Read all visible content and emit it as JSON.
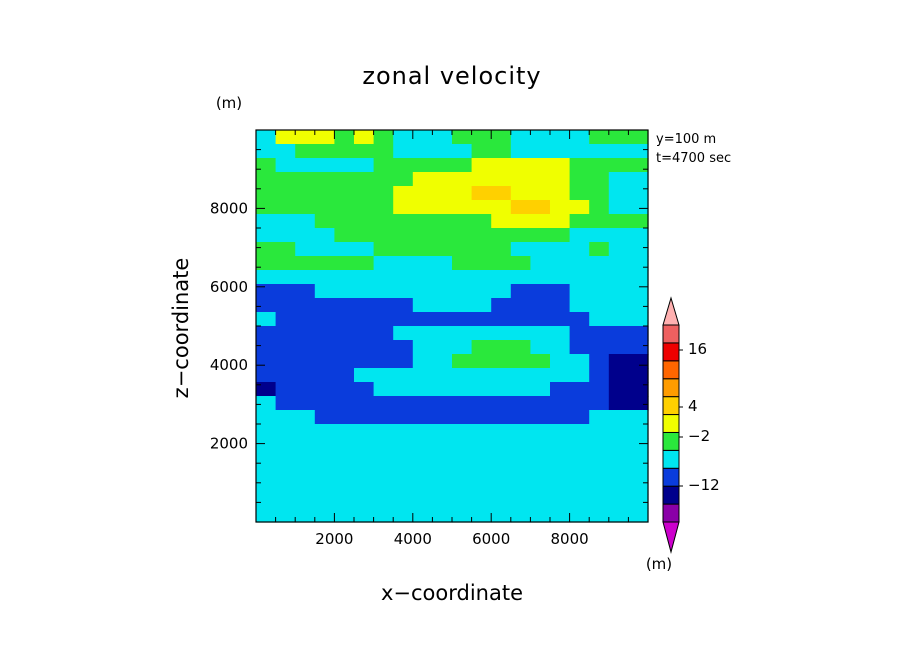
{
  "chart_data": {
    "type": "heatmap",
    "title": "zonal velocity",
    "xlabel": "x−coordinate",
    "ylabel": "z−coordinate",
    "x_unit": "(m)",
    "y_unit": "(m)",
    "xlim": [
      0,
      10000
    ],
    "ylim": [
      0,
      10000
    ],
    "xticks": [
      2000,
      4000,
      6000,
      8000
    ],
    "yticks": [
      2000,
      4000,
      6000,
      8000
    ],
    "annotations": [
      "y=100 m",
      "t=4700 sec"
    ],
    "colorbar": {
      "colors": [
        "#cc00cc",
        "#8a00a8",
        "#00008c",
        "#0a3cdc",
        "#00e6f0",
        "#2ae83c",
        "#f0ff00",
        "#ffd000",
        "#ff9c00",
        "#ff6600",
        "#ee0000",
        "#ee6060",
        "#ffb0b0"
      ],
      "tick_labels": [
        "16",
        "4",
        "−2",
        "−12"
      ]
    },
    "values": [
      [
        4,
        6,
        6,
        6,
        5,
        6,
        5,
        4,
        4,
        4,
        5,
        5,
        5,
        4,
        4,
        4,
        4,
        5,
        5,
        5
      ],
      [
        4,
        4,
        5,
        5,
        5,
        5,
        5,
        4,
        4,
        4,
        4,
        5,
        5,
        4,
        4,
        4,
        4,
        4,
        4,
        4
      ],
      [
        5,
        4,
        4,
        4,
        4,
        4,
        5,
        5,
        5,
        5,
        5,
        6,
        6,
        6,
        6,
        6,
        5,
        5,
        5,
        5
      ],
      [
        5,
        5,
        5,
        5,
        5,
        5,
        5,
        5,
        6,
        6,
        6,
        6,
        6,
        6,
        6,
        6,
        5,
        5,
        4,
        4
      ],
      [
        5,
        5,
        5,
        5,
        5,
        5,
        5,
        6,
        6,
        6,
        6,
        7,
        7,
        6,
        6,
        6,
        5,
        5,
        4,
        4
      ],
      [
        5,
        5,
        5,
        5,
        5,
        5,
        5,
        6,
        6,
        6,
        6,
        6,
        6,
        7,
        7,
        6,
        6,
        5,
        4,
        4
      ],
      [
        4,
        4,
        4,
        5,
        5,
        5,
        5,
        5,
        5,
        5,
        5,
        5,
        6,
        6,
        6,
        6,
        5,
        5,
        5,
        5
      ],
      [
        4,
        4,
        4,
        4,
        5,
        5,
        5,
        5,
        5,
        5,
        5,
        5,
        5,
        5,
        5,
        5,
        4,
        4,
        4,
        4
      ],
      [
        5,
        5,
        4,
        4,
        4,
        4,
        5,
        5,
        5,
        5,
        5,
        5,
        5,
        4,
        4,
        4,
        4,
        5,
        4,
        4
      ],
      [
        5,
        5,
        5,
        5,
        5,
        5,
        4,
        4,
        4,
        4,
        5,
        5,
        5,
        5,
        4,
        4,
        4,
        4,
        4,
        4
      ],
      [
        4,
        4,
        4,
        4,
        4,
        4,
        4,
        4,
        4,
        4,
        4,
        4,
        4,
        4,
        4,
        4,
        4,
        4,
        4,
        4
      ],
      [
        3,
        3,
        3,
        4,
        4,
        4,
        4,
        4,
        4,
        4,
        4,
        4,
        4,
        3,
        3,
        3,
        4,
        4,
        4,
        4
      ],
      [
        3,
        3,
        3,
        3,
        3,
        3,
        3,
        3,
        4,
        4,
        4,
        4,
        3,
        3,
        3,
        3,
        4,
        4,
        4,
        4
      ],
      [
        4,
        3,
        3,
        3,
        3,
        3,
        3,
        3,
        3,
        3,
        3,
        3,
        3,
        3,
        3,
        3,
        3,
        4,
        4,
        4
      ],
      [
        3,
        3,
        3,
        3,
        3,
        3,
        3,
        4,
        4,
        4,
        4,
        4,
        4,
        4,
        4,
        4,
        3,
        3,
        3,
        3
      ],
      [
        3,
        3,
        3,
        3,
        3,
        3,
        3,
        3,
        4,
        4,
        4,
        5,
        5,
        5,
        4,
        4,
        3,
        3,
        3,
        3
      ],
      [
        3,
        3,
        3,
        3,
        3,
        3,
        3,
        3,
        4,
        4,
        5,
        5,
        5,
        5,
        5,
        4,
        4,
        3,
        2,
        2
      ],
      [
        3,
        3,
        3,
        3,
        3,
        4,
        4,
        4,
        4,
        4,
        4,
        4,
        4,
        4,
        4,
        4,
        4,
        3,
        2,
        2
      ],
      [
        2,
        3,
        3,
        3,
        3,
        3,
        4,
        4,
        4,
        4,
        4,
        4,
        4,
        4,
        4,
        3,
        3,
        3,
        2,
        2
      ],
      [
        4,
        3,
        3,
        3,
        3,
        3,
        3,
        3,
        3,
        3,
        3,
        3,
        3,
        3,
        3,
        3,
        3,
        3,
        2,
        2
      ],
      [
        4,
        4,
        4,
        3,
        3,
        3,
        3,
        3,
        3,
        3,
        3,
        3,
        3,
        3,
        3,
        3,
        3,
        4,
        4,
        4
      ],
      [
        4,
        4,
        4,
        4,
        4,
        4,
        4,
        4,
        4,
        4,
        4,
        4,
        4,
        4,
        4,
        4,
        4,
        4,
        4,
        4
      ],
      [
        4,
        4,
        4,
        4,
        4,
        4,
        4,
        4,
        4,
        4,
        4,
        4,
        4,
        4,
        4,
        4,
        4,
        4,
        4,
        4
      ],
      [
        4,
        4,
        4,
        4,
        4,
        4,
        4,
        4,
        4,
        4,
        4,
        4,
        4,
        4,
        4,
        4,
        4,
        4,
        4,
        4
      ],
      [
        4,
        4,
        4,
        4,
        4,
        4,
        4,
        4,
        4,
        4,
        4,
        4,
        4,
        4,
        4,
        4,
        4,
        4,
        4,
        4
      ],
      [
        4,
        4,
        4,
        4,
        4,
        4,
        4,
        4,
        4,
        4,
        4,
        4,
        4,
        4,
        4,
        4,
        4,
        4,
        4,
        4
      ],
      [
        4,
        4,
        4,
        4,
        4,
        4,
        4,
        4,
        4,
        4,
        4,
        4,
        4,
        4,
        4,
        4,
        4,
        4,
        4,
        4
      ],
      [
        4,
        4,
        4,
        4,
        4,
        4,
        4,
        4,
        4,
        4,
        4,
        4,
        4,
        4,
        4,
        4,
        4,
        4,
        4,
        4
      ]
    ]
  }
}
